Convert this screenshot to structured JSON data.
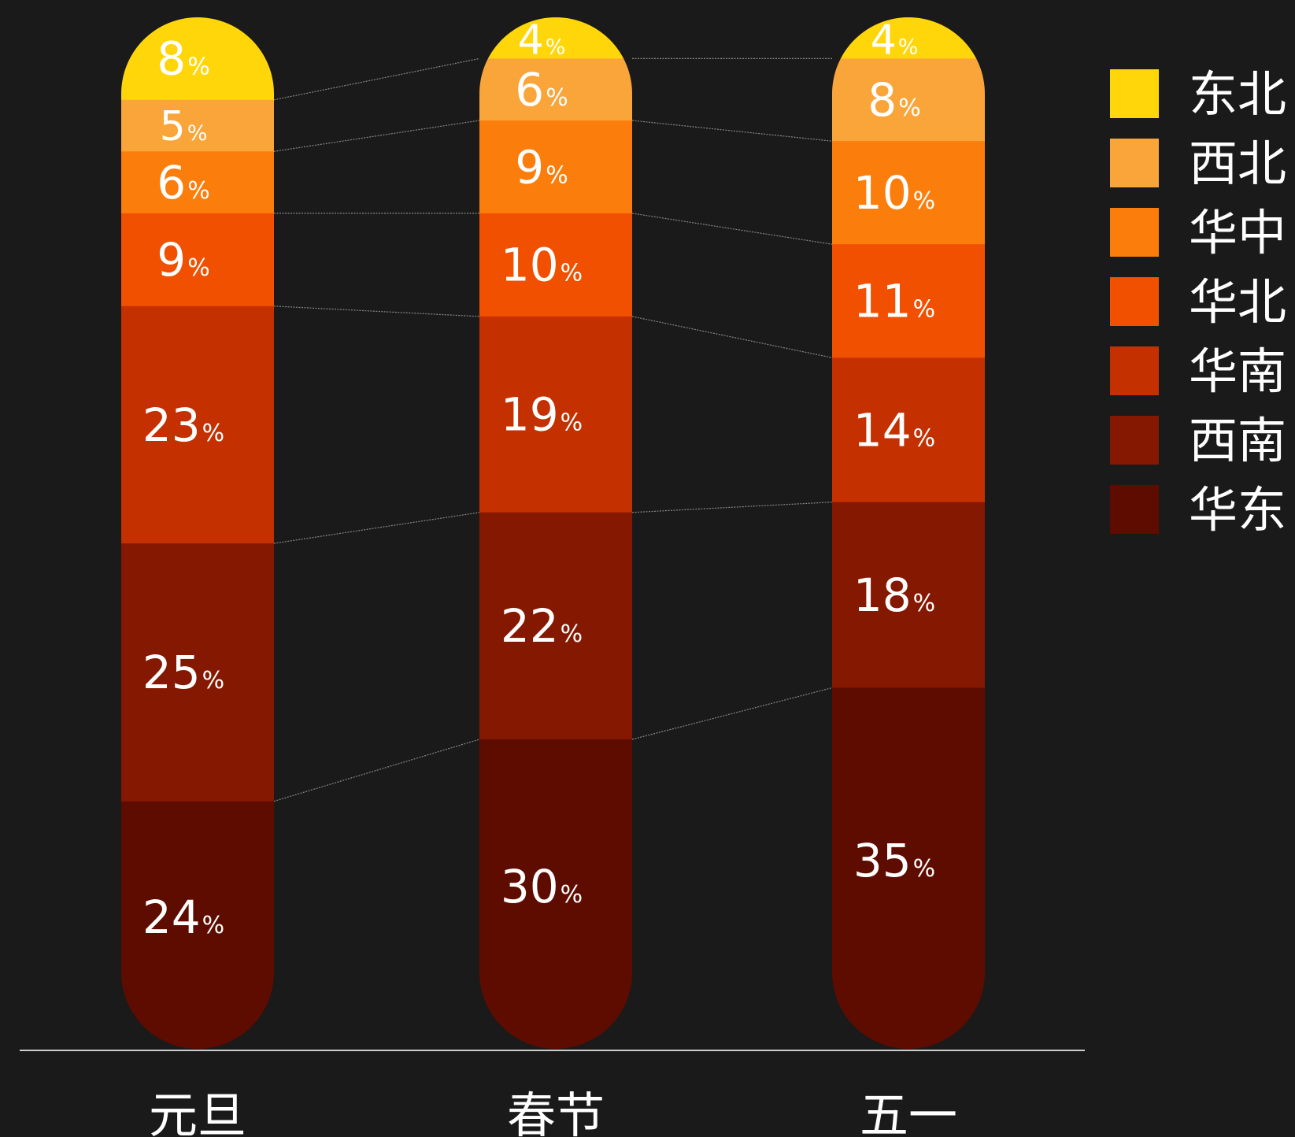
{
  "chart_data": {
    "type": "bar",
    "stacked": true,
    "normalized": true,
    "categories": [
      "元旦",
      "春节",
      "五一"
    ],
    "series": [
      {
        "name": "东北",
        "values": [
          8,
          4,
          4
        ],
        "color": "#ffd60a"
      },
      {
        "name": "西北",
        "values": [
          5,
          6,
          8
        ],
        "color": "#f9a53a"
      },
      {
        "name": "华中",
        "values": [
          6,
          9,
          10
        ],
        "color": "#fb7d0c"
      },
      {
        "name": "华北",
        "values": [
          9,
          10,
          11
        ],
        "color": "#f05000"
      },
      {
        "name": "华南",
        "values": [
          23,
          19,
          14
        ],
        "color": "#c43000"
      },
      {
        "name": "西南",
        "values": [
          25,
          22,
          18
        ],
        "color": "#851800"
      },
      {
        "name": "华东",
        "values": [
          24,
          30,
          35
        ],
        "color": "#5e0c00"
      }
    ],
    "value_suffix": "%",
    "title": "",
    "xlabel": "",
    "ylabel": "",
    "ylim": [
      0,
      100
    ],
    "grid": false,
    "legend_position": "right",
    "connector_lines": true,
    "background": "#1a1a1a",
    "label_color": "#ffffff",
    "axis_color": "#cccccc",
    "connector_color": "#888888"
  }
}
